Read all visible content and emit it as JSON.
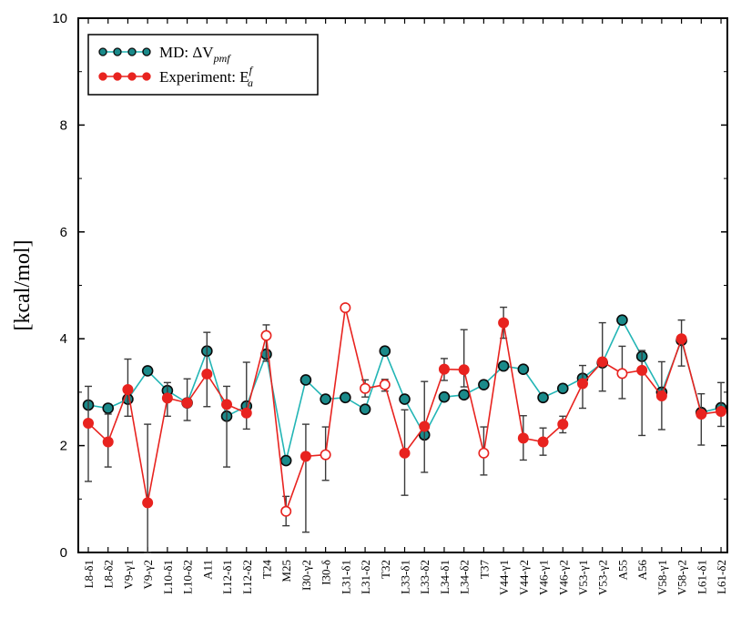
{
  "chart_data": {
    "type": "line",
    "ylabel": "[kcal/mol]",
    "xlabel": "",
    "ylim": [
      0,
      10
    ],
    "yticks": [
      "0",
      "2",
      "4",
      "6",
      "8",
      "10"
    ],
    "categories": [
      "L8-δ1",
      "L8-δ2",
      "V9-γ1",
      "V9-γ2",
      "L10-δ1",
      "L10-δ2",
      "A11",
      "L12-δ1",
      "L12-δ2",
      "T24",
      "M25",
      "I30-γ2",
      "I30-δ",
      "L31-δ1",
      "L31-δ2",
      "T32",
      "L33-δ1",
      "L33-δ2",
      "L34-δ1",
      "L34-δ2",
      "T37",
      "V44-γ1",
      "V44-γ2",
      "V46-γ1",
      "V46-γ2",
      "V53-γ1",
      "V53-γ2",
      "A55",
      "A56",
      "V58-γ1",
      "V58-γ2",
      "L61-δ1",
      "L61-δ2"
    ],
    "series": [
      {
        "key": "md",
        "values": [
          2.76,
          2.7,
          2.87,
          3.4,
          3.03,
          2.8,
          3.77,
          2.55,
          2.74,
          3.71,
          1.72,
          3.23,
          2.87,
          2.9,
          2.68,
          3.77,
          2.87,
          2.2,
          2.91,
          2.95,
          3.14,
          3.49,
          3.43,
          2.9,
          3.07,
          3.26,
          3.55,
          4.35,
          3.67,
          3.0,
          3.97,
          2.62,
          2.71
        ],
        "color": "#22b5b5",
        "marker_fill": "#1a8a8a"
      },
      {
        "key": "exp",
        "values": [
          2.42,
          2.07,
          3.05,
          0.93,
          2.89,
          2.8,
          3.34,
          2.77,
          2.61,
          4.06,
          0.77,
          1.8,
          1.83,
          4.58,
          3.07,
          3.14,
          1.86,
          2.36,
          3.43,
          3.42,
          1.86,
          4.3,
          2.14,
          2.07,
          2.4,
          3.16,
          3.57,
          3.35,
          3.41,
          2.93,
          4.0,
          2.59,
          2.64
        ],
        "error_low": [
          1.33,
          1.6,
          2.55,
          0.0,
          2.55,
          2.47,
          2.73,
          1.6,
          2.31,
          3.58,
          0.5,
          0.38,
          1.35,
          4.53,
          2.91,
          3.02,
          1.07,
          1.5,
          3.22,
          3.1,
          1.45,
          4.01,
          1.73,
          1.82,
          2.24,
          2.7,
          3.02,
          2.88,
          2.19,
          2.3,
          3.49,
          2.01,
          2.36
        ],
        "error_high": [
          3.11,
          2.59,
          3.62,
          2.4,
          3.18,
          3.25,
          4.12,
          3.11,
          3.56,
          4.26,
          1.05,
          2.4,
          2.35,
          4.62,
          3.23,
          3.24,
          2.67,
          3.2,
          3.63,
          4.17,
          2.35,
          4.59,
          2.56,
          2.33,
          2.55,
          3.5,
          4.3,
          3.86,
          3.78,
          3.57,
          4.35,
          2.97,
          3.18
        ],
        "hollow": [
          false,
          false,
          false,
          false,
          false,
          false,
          false,
          false,
          false,
          true,
          true,
          false,
          true,
          true,
          true,
          true,
          false,
          false,
          false,
          false,
          true,
          false,
          false,
          false,
          false,
          false,
          false,
          true,
          false,
          false,
          false,
          false,
          false
        ],
        "color": "#e8231f"
      }
    ],
    "legend": {
      "position": "top-left",
      "entries": [
        {
          "prefix": "MD: ΔV",
          "sub": "pmf",
          "sup": ""
        },
        {
          "prefix": "Experiment: E",
          "sub": "a",
          "sup": "f"
        }
      ]
    },
    "grid": false
  }
}
